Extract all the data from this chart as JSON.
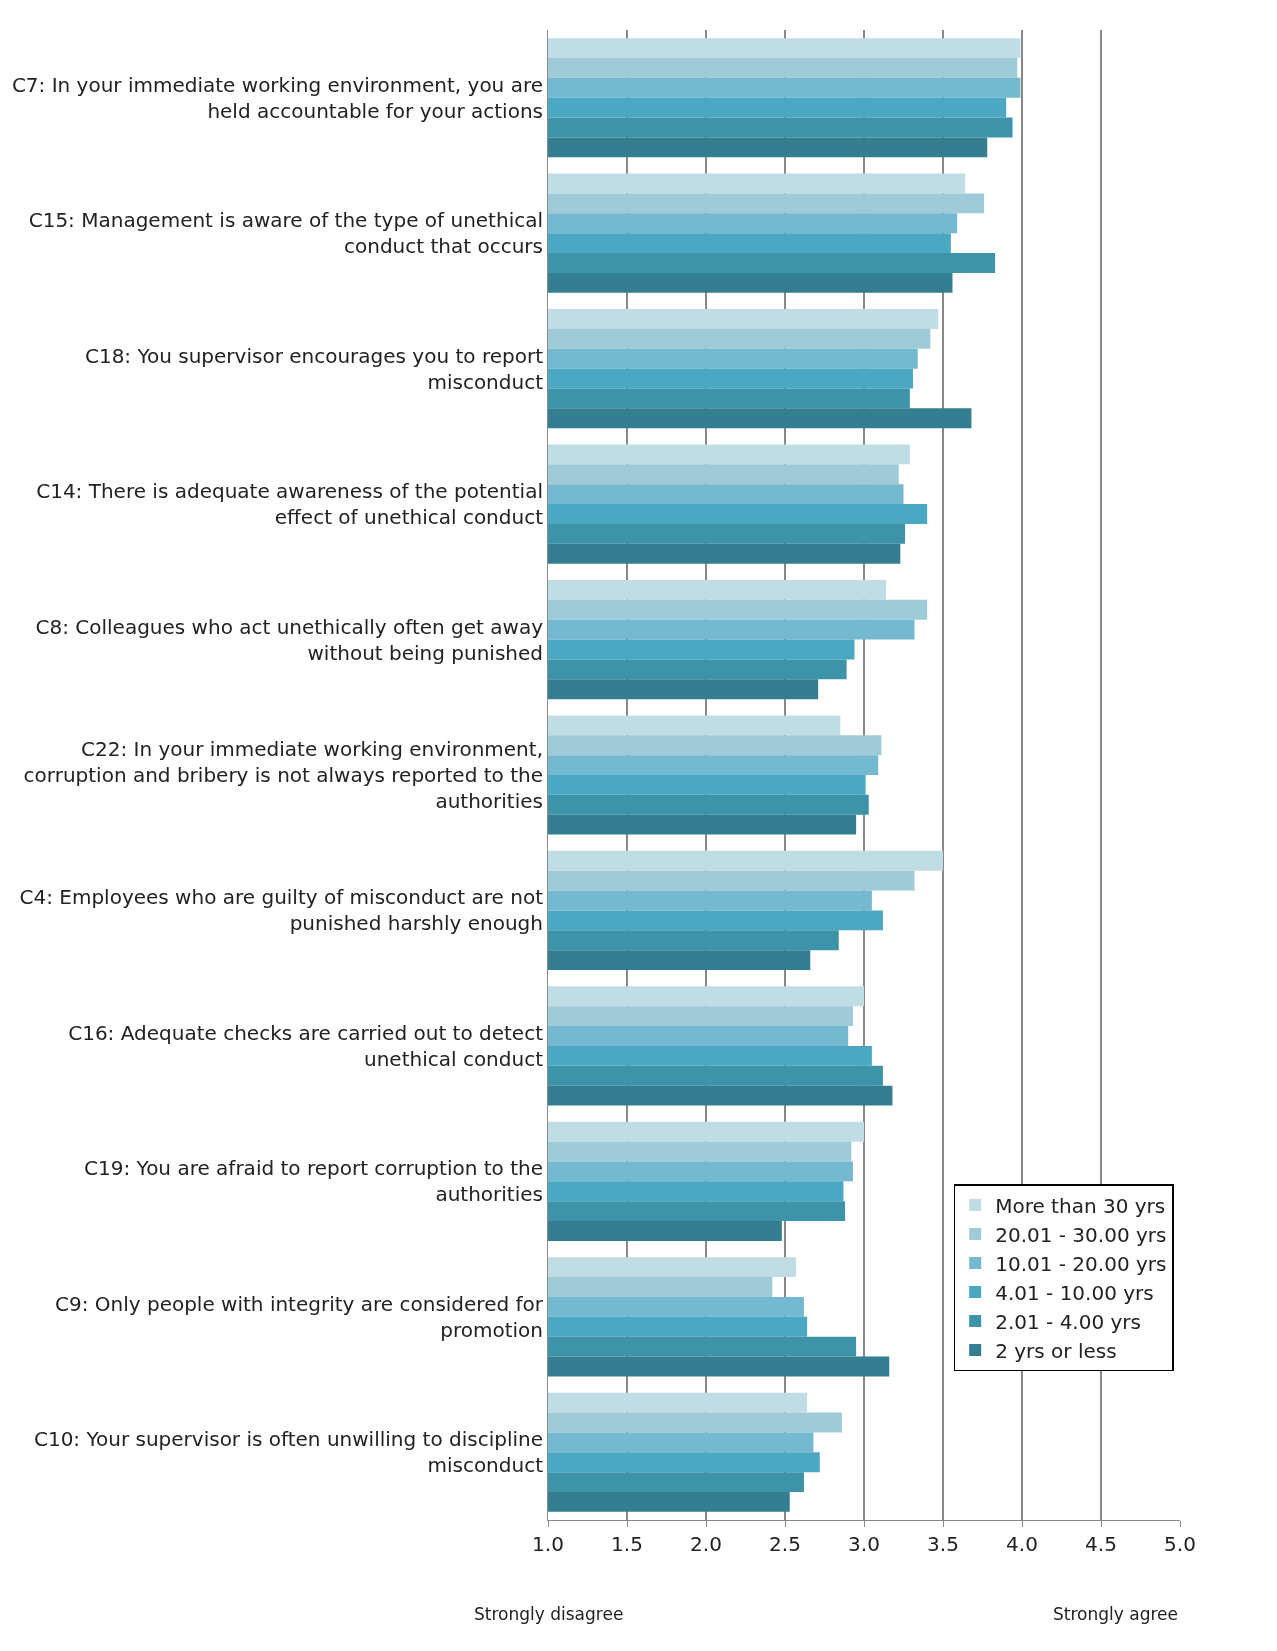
{
  "chart_data": {
    "type": "bar",
    "orientation": "horizontal",
    "categories": [
      "C7: In your immediate working environment, you are held accountable for your actions",
      "C15: Management is aware of the type of unethical conduct that occurs",
      "C18: You supervisor encourages you to report misconduct",
      "C14: There is adequate awareness of the potential effect of unethical conduct",
      "C8: Colleagues who act unethically often get away without being punished",
      "C22: In your immediate working environment, corruption and bribery is not always reported to the authorities",
      "C4: Employees who are guilty of misconduct are not punished harshly enough",
      "C16: Adequate checks are carried out to detect unethical conduct",
      "C19: You are afraid to report corruption to the authorities",
      "C9: Only people with integrity are considered for promotion",
      "C10: Your supervisor is often unwilling to discipline misconduct"
    ],
    "series": [
      {
        "name": "More than 30 yrs",
        "color": "#c0dde5",
        "values": [
          3.99,
          3.64,
          3.47,
          3.29,
          3.14,
          2.85,
          3.5,
          3.0,
          3.0,
          2.57,
          2.64
        ]
      },
      {
        "name": "20.01 - 30.00 yrs",
        "color": "#9fcbd8",
        "values": [
          3.97,
          3.76,
          3.42,
          3.22,
          3.4,
          3.11,
          3.32,
          2.93,
          2.92,
          2.42,
          2.86
        ]
      },
      {
        "name": "10.01 - 20.00 yrs",
        "color": "#74b9cf",
        "values": [
          3.99,
          3.59,
          3.34,
          3.25,
          3.32,
          3.09,
          3.05,
          2.9,
          2.93,
          2.62,
          2.68
        ]
      },
      {
        "name": "4.01 - 10.00 yrs",
        "color": "#4aa8c2",
        "values": [
          3.9,
          3.55,
          3.31,
          3.4,
          2.94,
          3.01,
          3.12,
          3.05,
          2.87,
          2.64,
          2.72
        ]
      },
      {
        "name": "2.01 - 4.00 yrs",
        "color": "#3d93a8",
        "values": [
          3.94,
          3.83,
          3.29,
          3.26,
          2.89,
          3.03,
          2.84,
          3.12,
          2.88,
          2.95,
          2.62
        ]
      },
      {
        "name": "2 yrs or less",
        "color": "#347e91",
        "values": [
          3.78,
          3.56,
          3.68,
          3.23,
          2.71,
          2.95,
          2.66,
          3.18,
          2.48,
          3.16,
          2.53
        ]
      }
    ],
    "xlim": [
      1.0,
      5.0
    ],
    "xticks": [
      {
        "value": 1.0,
        "label": "1.0"
      },
      {
        "value": 1.5,
        "label": "1.5"
      },
      {
        "value": 2.0,
        "label": "2.0"
      },
      {
        "value": 2.5,
        "label": "2.5"
      },
      {
        "value": 3.0,
        "label": "3.0"
      },
      {
        "value": 3.5,
        "label": "3.5"
      },
      {
        "value": 4.0,
        "label": "4.0"
      },
      {
        "value": 4.5,
        "label": "4.5"
      },
      {
        "value": 5.0,
        "label": "5.0"
      }
    ],
    "grid": "x",
    "legend": "bottom right",
    "annotations": [
      "Strongly disagree",
      "Strongly agree"
    ]
  }
}
